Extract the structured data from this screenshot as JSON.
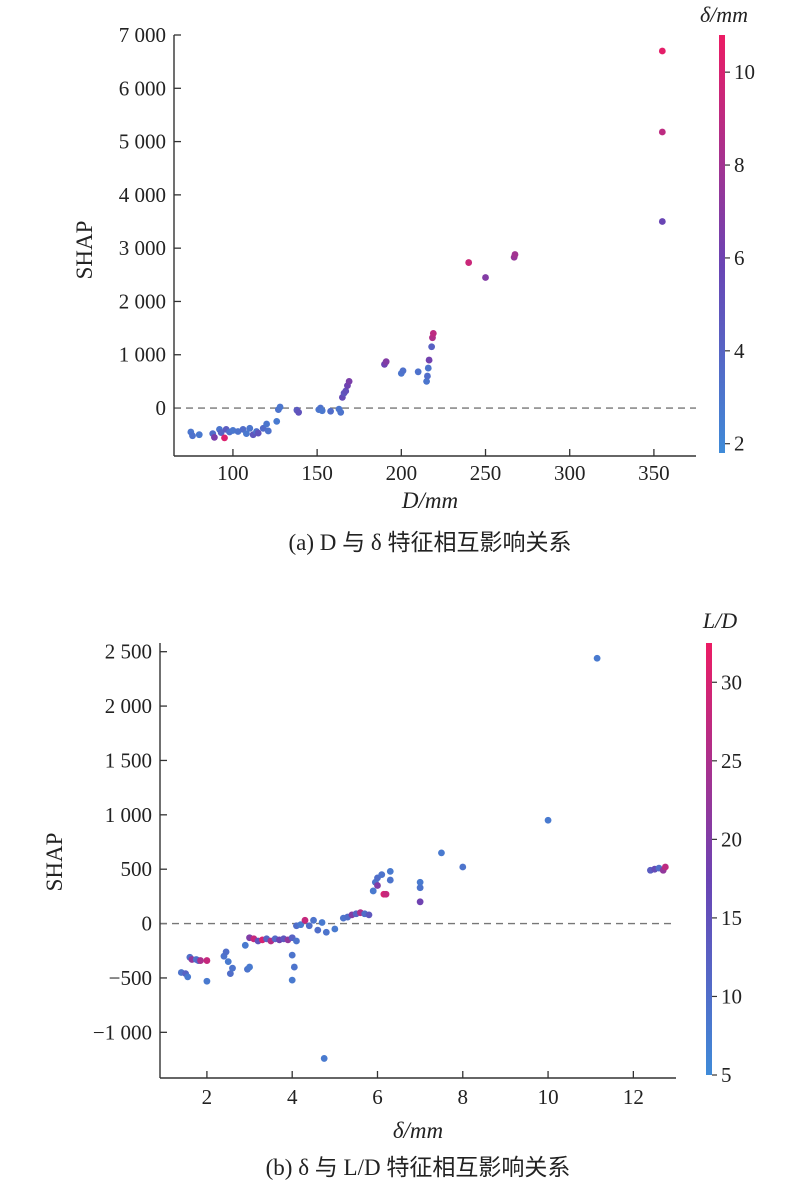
{
  "chart_data": [
    {
      "type": "scatter",
      "xlabel": "D/mm",
      "ylabel": "SHAP",
      "caption": "(a) D 与 δ 特征相互影响关系",
      "xlim": [
        65,
        375
      ],
      "ylim": [
        -900,
        7000
      ],
      "xticks": [
        100,
        150,
        200,
        250,
        300,
        350
      ],
      "xtick_labels": [
        "100",
        "150",
        "200",
        "250",
        "300",
        "350"
      ],
      "yticks": [
        0,
        1000,
        2000,
        3000,
        4000,
        5000,
        6000,
        7000
      ],
      "ytick_labels": [
        "0",
        "1 000",
        "2 000",
        "3 000",
        "4 000",
        "5 000",
        "6 000",
        "7 000"
      ],
      "zero_line": true,
      "colorbar": {
        "title": "δ/mm",
        "range": [
          1.8,
          10.8
        ],
        "ticks": [
          2,
          4,
          6,
          8,
          10
        ],
        "tick_labels": [
          "2",
          "4",
          "6",
          "8",
          "10"
        ],
        "low_color": "#3f8bd8",
        "mid_color": "#6a44b4",
        "high_color": "#ec1c64"
      },
      "points": [
        {
          "x": 75,
          "y": -450,
          "c": 3.0
        },
        {
          "x": 76,
          "y": -520,
          "c": 3.2
        },
        {
          "x": 80,
          "y": -500,
          "c": 2.8
        },
        {
          "x": 88,
          "y": -480,
          "c": 3.5
        },
        {
          "x": 89,
          "y": -550,
          "c": 6.5
        },
        {
          "x": 92,
          "y": -400,
          "c": 3.0
        },
        {
          "x": 93,
          "y": -460,
          "c": 4.0
        },
        {
          "x": 95,
          "y": -560,
          "c": 10.2
        },
        {
          "x": 96,
          "y": -400,
          "c": 4.5
        },
        {
          "x": 98,
          "y": -450,
          "c": 3.2
        },
        {
          "x": 100,
          "y": -420,
          "c": 2.9
        },
        {
          "x": 103,
          "y": -440,
          "c": 3.1
        },
        {
          "x": 106,
          "y": -400,
          "c": 3.5
        },
        {
          "x": 108,
          "y": -480,
          "c": 2.8
        },
        {
          "x": 110,
          "y": -380,
          "c": 3.0
        },
        {
          "x": 112,
          "y": -500,
          "c": 4.8
        },
        {
          "x": 114,
          "y": -440,
          "c": 3.3
        },
        {
          "x": 115,
          "y": -470,
          "c": 5.0
        },
        {
          "x": 118,
          "y": -380,
          "c": 3.6
        },
        {
          "x": 120,
          "y": -300,
          "c": 3.0
        },
        {
          "x": 121,
          "y": -430,
          "c": 3.2
        },
        {
          "x": 126,
          "y": -250,
          "c": 2.7
        },
        {
          "x": 127,
          "y": -30,
          "c": 3.1
        },
        {
          "x": 128,
          "y": 20,
          "c": 3.0
        },
        {
          "x": 138,
          "y": -40,
          "c": 4.5
        },
        {
          "x": 139,
          "y": -80,
          "c": 5.0
        },
        {
          "x": 151,
          "y": -30,
          "c": 3.0
        },
        {
          "x": 152,
          "y": 0,
          "c": 3.2
        },
        {
          "x": 153,
          "y": -50,
          "c": 2.9
        },
        {
          "x": 158,
          "y": -60,
          "c": 3.5
        },
        {
          "x": 163,
          "y": -20,
          "c": 3.0
        },
        {
          "x": 164,
          "y": -80,
          "c": 3.1
        },
        {
          "x": 165,
          "y": 200,
          "c": 5.5
        },
        {
          "x": 166,
          "y": 280,
          "c": 4.8
        },
        {
          "x": 167,
          "y": 320,
          "c": 5.2
        },
        {
          "x": 168,
          "y": 420,
          "c": 6.0
        },
        {
          "x": 169,
          "y": 500,
          "c": 6.5
        },
        {
          "x": 190,
          "y": 820,
          "c": 6.0
        },
        {
          "x": 191,
          "y": 870,
          "c": 6.8
        },
        {
          "x": 200,
          "y": 650,
          "c": 3.0
        },
        {
          "x": 201,
          "y": 700,
          "c": 3.3
        },
        {
          "x": 210,
          "y": 680,
          "c": 3.2
        },
        {
          "x": 215,
          "y": 500,
          "c": 3.0
        },
        {
          "x": 215.5,
          "y": 600,
          "c": 3.5
        },
        {
          "x": 216,
          "y": 750,
          "c": 3.1
        },
        {
          "x": 216.5,
          "y": 900,
          "c": 6.2
        },
        {
          "x": 218,
          "y": 1150,
          "c": 4.2
        },
        {
          "x": 218.5,
          "y": 1320,
          "c": 8.5
        },
        {
          "x": 219,
          "y": 1400,
          "c": 9.0
        },
        {
          "x": 240,
          "y": 2730,
          "c": 9.5
        },
        {
          "x": 250,
          "y": 2450,
          "c": 6.8
        },
        {
          "x": 267,
          "y": 2830,
          "c": 7.5
        },
        {
          "x": 267.5,
          "y": 2880,
          "c": 8.0
        },
        {
          "x": 355,
          "y": 3500,
          "c": 5.8
        },
        {
          "x": 355,
          "y": 5180,
          "c": 9.0
        },
        {
          "x": 355,
          "y": 6700,
          "c": 10.5
        }
      ]
    },
    {
      "type": "scatter",
      "xlabel": "δ/mm",
      "ylabel": "SHAP",
      "caption": "(b) δ 与 L/D 特征相互影响关系",
      "xlim": [
        0.9,
        13.0
      ],
      "ylim": [
        -1420,
        2580
      ],
      "xticks": [
        2,
        4,
        6,
        8,
        10,
        12
      ],
      "xtick_labels": [
        "2",
        "4",
        "6",
        "8",
        "10",
        "12"
      ],
      "yticks": [
        -1000,
        -500,
        0,
        500,
        1000,
        1500,
        2000,
        2500
      ],
      "ytick_labels": [
        "−1 000",
        "−500",
        "0",
        "500",
        "1 000",
        "1 500",
        "2 000",
        "2 500"
      ],
      "zero_line": true,
      "colorbar": {
        "title": "L/D",
        "range": [
          5,
          32.5
        ],
        "ticks": [
          5,
          10,
          15,
          20,
          25,
          30
        ],
        "tick_labels": [
          "5",
          "10",
          "15",
          "20",
          "25",
          "30"
        ],
        "low_color": "#3f8bd8",
        "mid_color": "#6a44b4",
        "high_color": "#ec1c64"
      },
      "points": [
        {
          "x": 1.4,
          "y": -450,
          "c": 9
        },
        {
          "x": 1.5,
          "y": -460,
          "c": 12
        },
        {
          "x": 1.55,
          "y": -490,
          "c": 8
        },
        {
          "x": 1.6,
          "y": -310,
          "c": 10
        },
        {
          "x": 1.65,
          "y": -330,
          "c": 22
        },
        {
          "x": 1.75,
          "y": -330,
          "c": 9
        },
        {
          "x": 1.8,
          "y": -340,
          "c": 11
        },
        {
          "x": 1.85,
          "y": -340,
          "c": 25
        },
        {
          "x": 2.0,
          "y": -340,
          "c": 28
        },
        {
          "x": 2.0,
          "y": -530,
          "c": 8
        },
        {
          "x": 2.4,
          "y": -300,
          "c": 9
        },
        {
          "x": 2.45,
          "y": -260,
          "c": 10
        },
        {
          "x": 2.5,
          "y": -350,
          "c": 8
        },
        {
          "x": 2.55,
          "y": -460,
          "c": 10
        },
        {
          "x": 2.6,
          "y": -410,
          "c": 9
        },
        {
          "x": 2.9,
          "y": -200,
          "c": 8
        },
        {
          "x": 2.95,
          "y": -420,
          "c": 9
        },
        {
          "x": 3.0,
          "y": -400,
          "c": 8
        },
        {
          "x": 3.0,
          "y": -130,
          "c": 20
        },
        {
          "x": 3.1,
          "y": -140,
          "c": 28
        },
        {
          "x": 3.2,
          "y": -160,
          "c": 15
        },
        {
          "x": 3.3,
          "y": -150,
          "c": 30
        },
        {
          "x": 3.4,
          "y": -140,
          "c": 12
        },
        {
          "x": 3.5,
          "y": -160,
          "c": 26
        },
        {
          "x": 3.6,
          "y": -140,
          "c": 11
        },
        {
          "x": 3.7,
          "y": -150,
          "c": 18
        },
        {
          "x": 3.8,
          "y": -140,
          "c": 14
        },
        {
          "x": 3.9,
          "y": -150,
          "c": 22
        },
        {
          "x": 4.0,
          "y": -130,
          "c": 12
        },
        {
          "x": 4.0,
          "y": -290,
          "c": 9
        },
        {
          "x": 4.0,
          "y": -520,
          "c": 8
        },
        {
          "x": 4.05,
          "y": -400,
          "c": 9
        },
        {
          "x": 4.1,
          "y": -160,
          "c": 9
        },
        {
          "x": 4.1,
          "y": -20,
          "c": 10
        },
        {
          "x": 4.2,
          "y": -10,
          "c": 8
        },
        {
          "x": 4.3,
          "y": 30,
          "c": 28
        },
        {
          "x": 4.4,
          "y": -20,
          "c": 10
        },
        {
          "x": 4.5,
          "y": 30,
          "c": 9
        },
        {
          "x": 4.6,
          "y": -60,
          "c": 10
        },
        {
          "x": 4.7,
          "y": 10,
          "c": 8
        },
        {
          "x": 4.75,
          "y": -1240,
          "c": 8
        },
        {
          "x": 4.8,
          "y": -80,
          "c": 9
        },
        {
          "x": 5.0,
          "y": -50,
          "c": 8
        },
        {
          "x": 5.2,
          "y": 50,
          "c": 9
        },
        {
          "x": 5.3,
          "y": 60,
          "c": 10
        },
        {
          "x": 5.4,
          "y": 80,
          "c": 20
        },
        {
          "x": 5.5,
          "y": 90,
          "c": 12
        },
        {
          "x": 5.6,
          "y": 100,
          "c": 25
        },
        {
          "x": 5.7,
          "y": 90,
          "c": 10
        },
        {
          "x": 5.8,
          "y": 80,
          "c": 14
        },
        {
          "x": 5.9,
          "y": 300,
          "c": 8
        },
        {
          "x": 5.95,
          "y": 380,
          "c": 9
        },
        {
          "x": 6.0,
          "y": 350,
          "c": 20
        },
        {
          "x": 6.0,
          "y": 420,
          "c": 10
        },
        {
          "x": 6.1,
          "y": 450,
          "c": 9
        },
        {
          "x": 6.15,
          "y": 270,
          "c": 30
        },
        {
          "x": 6.2,
          "y": 270,
          "c": 28
        },
        {
          "x": 6.3,
          "y": 400,
          "c": 9
        },
        {
          "x": 6.3,
          "y": 480,
          "c": 8
        },
        {
          "x": 7.0,
          "y": 200,
          "c": 18
        },
        {
          "x": 7.0,
          "y": 330,
          "c": 9
        },
        {
          "x": 7.0,
          "y": 380,
          "c": 8
        },
        {
          "x": 7.5,
          "y": 650,
          "c": 8
        },
        {
          "x": 8.0,
          "y": 520,
          "c": 9
        },
        {
          "x": 10.0,
          "y": 950,
          "c": 8
        },
        {
          "x": 11.15,
          "y": 2440,
          "c": 8
        },
        {
          "x": 12.4,
          "y": 490,
          "c": 13
        },
        {
          "x": 12.5,
          "y": 500,
          "c": 16
        },
        {
          "x": 12.6,
          "y": 510,
          "c": 10
        },
        {
          "x": 12.7,
          "y": 490,
          "c": 22
        },
        {
          "x": 12.75,
          "y": 520,
          "c": 27
        }
      ]
    }
  ]
}
